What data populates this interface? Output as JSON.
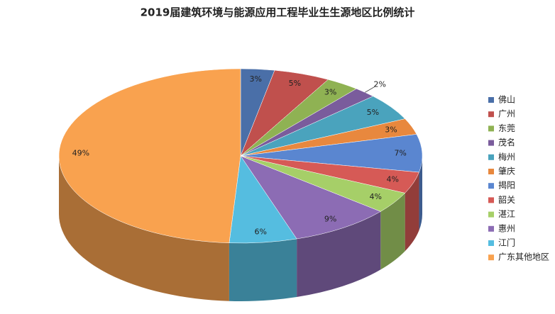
{
  "chart_data": {
    "type": "pie3d",
    "title": "2019届建筑环境与能源应用工程毕业生生源地区比例统计",
    "categories": [
      "佛山",
      "广州",
      "东莞",
      "茂名",
      "梅州",
      "肇庆",
      "揭阳",
      "韶关",
      "湛江",
      "惠州",
      "江门",
      "广东其他地区"
    ],
    "values": [
      3,
      5,
      3,
      2,
      5,
      3,
      7,
      4,
      4,
      9,
      6,
      49
    ],
    "value_labels": [
      "3%",
      "5%",
      "3%",
      "2%",
      "5%",
      "3%",
      "7%",
      "4%",
      "4%",
      "9%",
      "6%",
      "49%"
    ],
    "colors": [
      "#4a6fa8",
      "#c0504d",
      "#8fb253",
      "#7a5c9c",
      "#4aa3bd",
      "#e8883e",
      "#5a86d0",
      "#d65a56",
      "#a6cf68",
      "#8c6cb4",
      "#55bde0",
      "#f9a24f"
    ],
    "legend": "right"
  }
}
